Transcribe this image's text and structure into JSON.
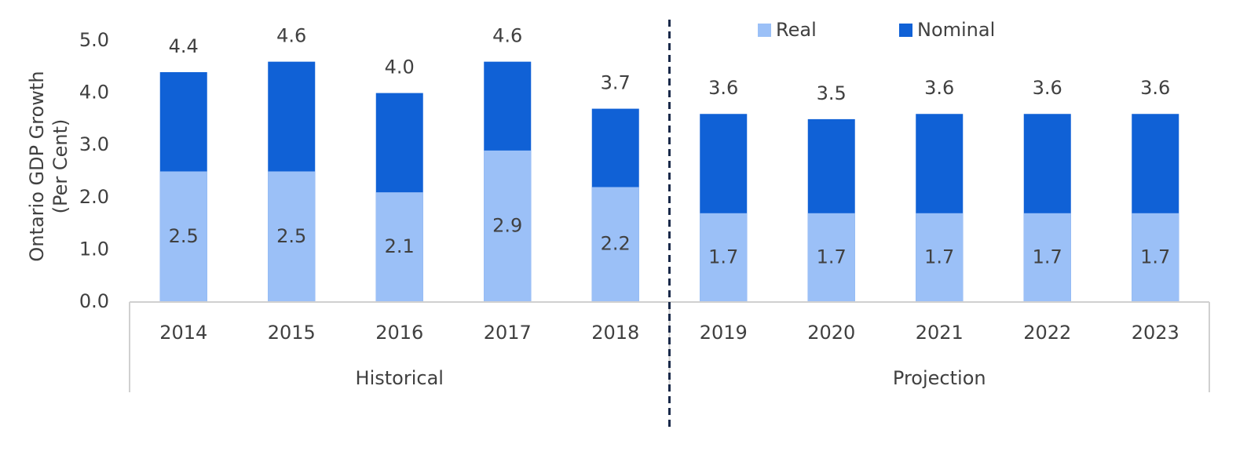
{
  "chart_data": {
    "type": "bar",
    "ylabel": [
      "Ontario GDP Growth",
      "(Per Cent)"
    ],
    "categories": [
      "2014",
      "2015",
      "2016",
      "2017",
      "2018",
      "2019",
      "2020",
      "2021",
      "2022",
      "2023"
    ],
    "category_groups": [
      "Historical",
      "Historical",
      "Historical",
      "Historical",
      "Historical",
      "Projection",
      "Projection",
      "Projection",
      "Projection",
      "Projection"
    ],
    "series": [
      {
        "name": "Nominal",
        "color": "#1061d6",
        "values": [
          4.4,
          4.6,
          4.0,
          4.6,
          3.7,
          3.6,
          3.5,
          3.6,
          3.6,
          3.6
        ],
        "value_labels": [
          "4.4",
          "4.6",
          "4.0",
          "4.6",
          "3.7",
          "3.6",
          "3.5",
          "3.6",
          "3.6",
          "3.6"
        ]
      },
      {
        "name": "Real",
        "color": "#9bc0f7",
        "values": [
          2.5,
          2.5,
          2.1,
          2.9,
          2.2,
          1.7,
          1.7,
          1.7,
          1.7,
          1.7
        ],
        "value_labels": [
          "2.5",
          "2.5",
          "2.1",
          "2.9",
          "2.2",
          "1.7",
          "1.7",
          "1.7",
          "1.7",
          "1.7"
        ]
      }
    ],
    "ylim": [
      0,
      5
    ],
    "yticks": [
      {
        "value": 0,
        "label": "0.0"
      },
      {
        "value": 1,
        "label": "1.0"
      },
      {
        "value": 2,
        "label": "2.0"
      },
      {
        "value": 3,
        "label": "3.0"
      },
      {
        "value": 4,
        "label": "4.0"
      },
      {
        "value": 5,
        "label": "5.0"
      }
    ],
    "legend": "top"
  }
}
